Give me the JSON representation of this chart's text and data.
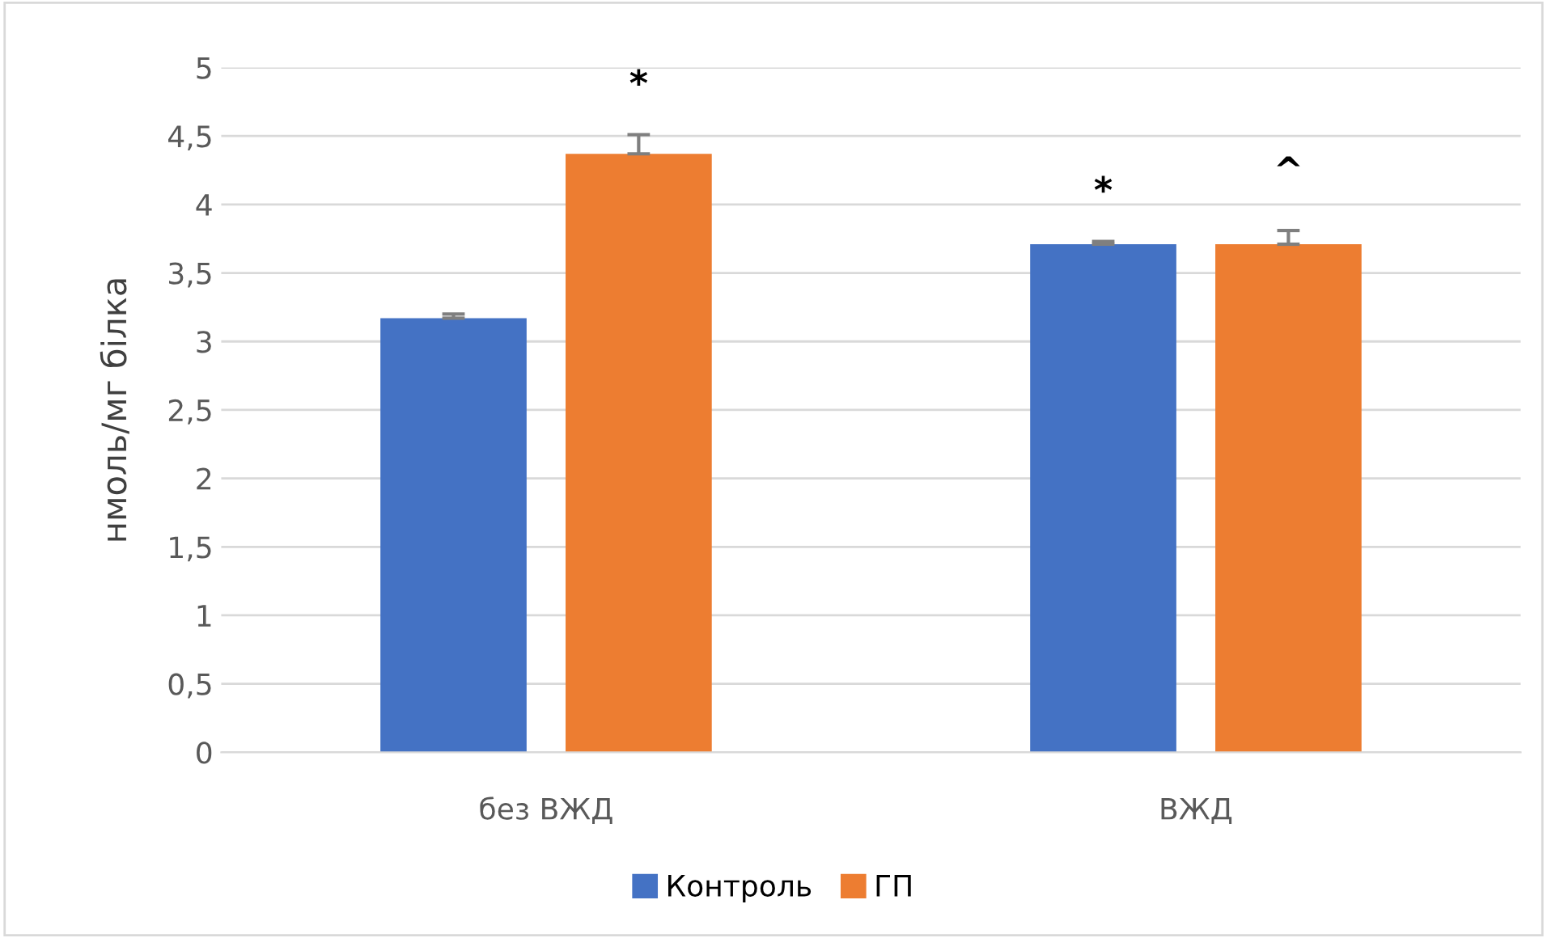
{
  "chart_data": {
    "type": "bar",
    "ylabel": "нмоль/мг білка",
    "categories": [
      "без ВЖД",
      "ВЖД"
    ],
    "series": [
      {
        "name": "Контроль",
        "color": "#4472c4",
        "values": [
          3.17,
          3.71
        ],
        "errors": [
          0.03,
          0.02
        ]
      },
      {
        "name": "ГП",
        "color": "#ed7d31",
        "values": [
          4.37,
          3.71
        ],
        "errors": [
          0.14,
          0.1
        ]
      }
    ],
    "ylim": [
      0,
      5
    ],
    "yticks": [
      0,
      {
        "value": 0.5,
        "label": "0,5"
      },
      1,
      {
        "value": 1.5,
        "label": "1,5"
      },
      2,
      {
        "value": 2.5,
        "label": "2,5"
      },
      3,
      {
        "value": 3.5,
        "label": "3,5"
      },
      4,
      {
        "value": 4.5,
        "label": "4,5"
      },
      5
    ],
    "grid": "y",
    "legend": "bottom",
    "annotations": [
      "*",
      "*",
      "^"
    ]
  }
}
